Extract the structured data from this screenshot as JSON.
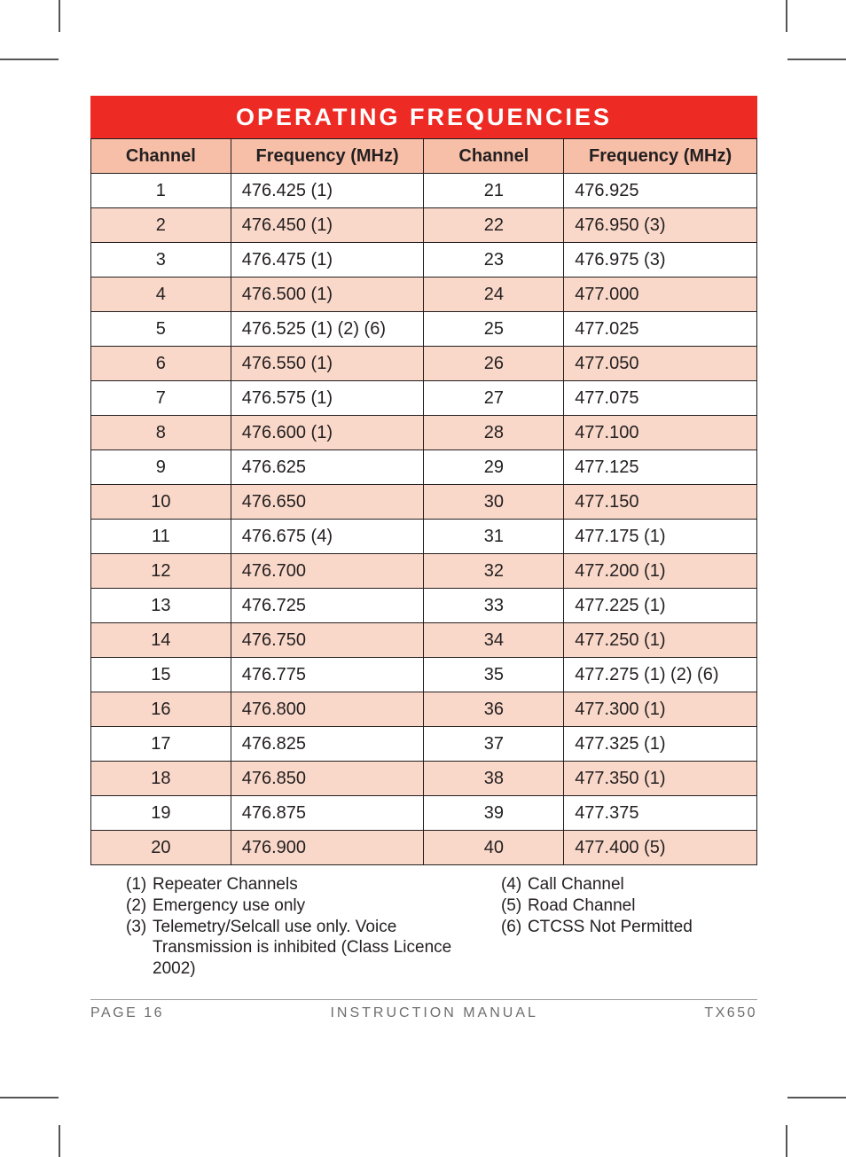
{
  "title": "OPERATING FREQUENCIES",
  "columns": [
    "Channel",
    "Frequency (MHz)",
    "Channel",
    "Frequency (MHz)"
  ],
  "col_widths_pct": [
    21,
    29,
    21,
    29
  ],
  "colors": {
    "title_bg": "#ee2a24",
    "title_text": "#ffffff",
    "header_bg": "#f7bfa8",
    "row_alt_bg": "#f9d8c9",
    "border": "#231f20",
    "text": "#231f20",
    "footer_text": "#6e6e6e"
  },
  "rows": [
    {
      "ch_a": "1",
      "fq_a": "476.425 (1)",
      "ch_b": "21",
      "fq_b": "476.925"
    },
    {
      "ch_a": "2",
      "fq_a": "476.450 (1)",
      "ch_b": "22",
      "fq_b": "476.950 (3)"
    },
    {
      "ch_a": "3",
      "fq_a": "476.475 (1)",
      "ch_b": "23",
      "fq_b": "476.975 (3)"
    },
    {
      "ch_a": "4",
      "fq_a": "476.500 (1)",
      "ch_b": "24",
      "fq_b": "477.000"
    },
    {
      "ch_a": "5",
      "fq_a": "476.525 (1) (2) (6)",
      "ch_b": "25",
      "fq_b": "477.025"
    },
    {
      "ch_a": "6",
      "fq_a": "476.550 (1)",
      "ch_b": "26",
      "fq_b": "477.050"
    },
    {
      "ch_a": "7",
      "fq_a": "476.575 (1)",
      "ch_b": "27",
      "fq_b": "477.075"
    },
    {
      "ch_a": "8",
      "fq_a": "476.600 (1)",
      "ch_b": "28",
      "fq_b": "477.100"
    },
    {
      "ch_a": "9",
      "fq_a": "476.625",
      "ch_b": "29",
      "fq_b": "477.125"
    },
    {
      "ch_a": "10",
      "fq_a": "476.650",
      "ch_b": "30",
      "fq_b": "477.150"
    },
    {
      "ch_a": "11",
      "fq_a": "476.675 (4)",
      "ch_b": "31",
      "fq_b": "477.175 (1)"
    },
    {
      "ch_a": "12",
      "fq_a": "476.700",
      "ch_b": "32",
      "fq_b": "477.200 (1)"
    },
    {
      "ch_a": "13",
      "fq_a": "476.725",
      "ch_b": "33",
      "fq_b": "477.225 (1)"
    },
    {
      "ch_a": "14",
      "fq_a": "476.750",
      "ch_b": "34",
      "fq_b": "477.250 (1)"
    },
    {
      "ch_a": "15",
      "fq_a": "476.775",
      "ch_b": "35",
      "fq_b": "477.275 (1) (2) (6)"
    },
    {
      "ch_a": "16",
      "fq_a": "476.800",
      "ch_b": "36",
      "fq_b": "477.300 (1)"
    },
    {
      "ch_a": "17",
      "fq_a": "476.825",
      "ch_b": "37",
      "fq_b": "477.325 (1)"
    },
    {
      "ch_a": "18",
      "fq_a": "476.850",
      "ch_b": "38",
      "fq_b": "477.350 (1)"
    },
    {
      "ch_a": "19",
      "fq_a": "476.875",
      "ch_b": "39",
      "fq_b": "477.375"
    },
    {
      "ch_a": "20",
      "fq_a": "476.900",
      "ch_b": "40",
      "fq_b": "477.400 (5)"
    }
  ],
  "footnotes_left": [
    {
      "num": "(1)",
      "text": "Repeater Channels"
    },
    {
      "num": "(2)",
      "text": "Emergency use only"
    },
    {
      "num": "(3)",
      "text": "Telemetry/Selcall use only. Voice"
    }
  ],
  "footnotes_left_cont": "Transmission is inhibited (Class Licence 2002)",
  "footnotes_right": [
    {
      "num": "(4)",
      "text": "Call Channel"
    },
    {
      "num": "(5)",
      "text": "Road Channel"
    },
    {
      "num": "(6)",
      "text": "CTCSS Not Permitted"
    }
  ],
  "footer": {
    "left": "PAGE 16",
    "center": "INSTRUCTION MANUAL",
    "right": "TX650"
  }
}
